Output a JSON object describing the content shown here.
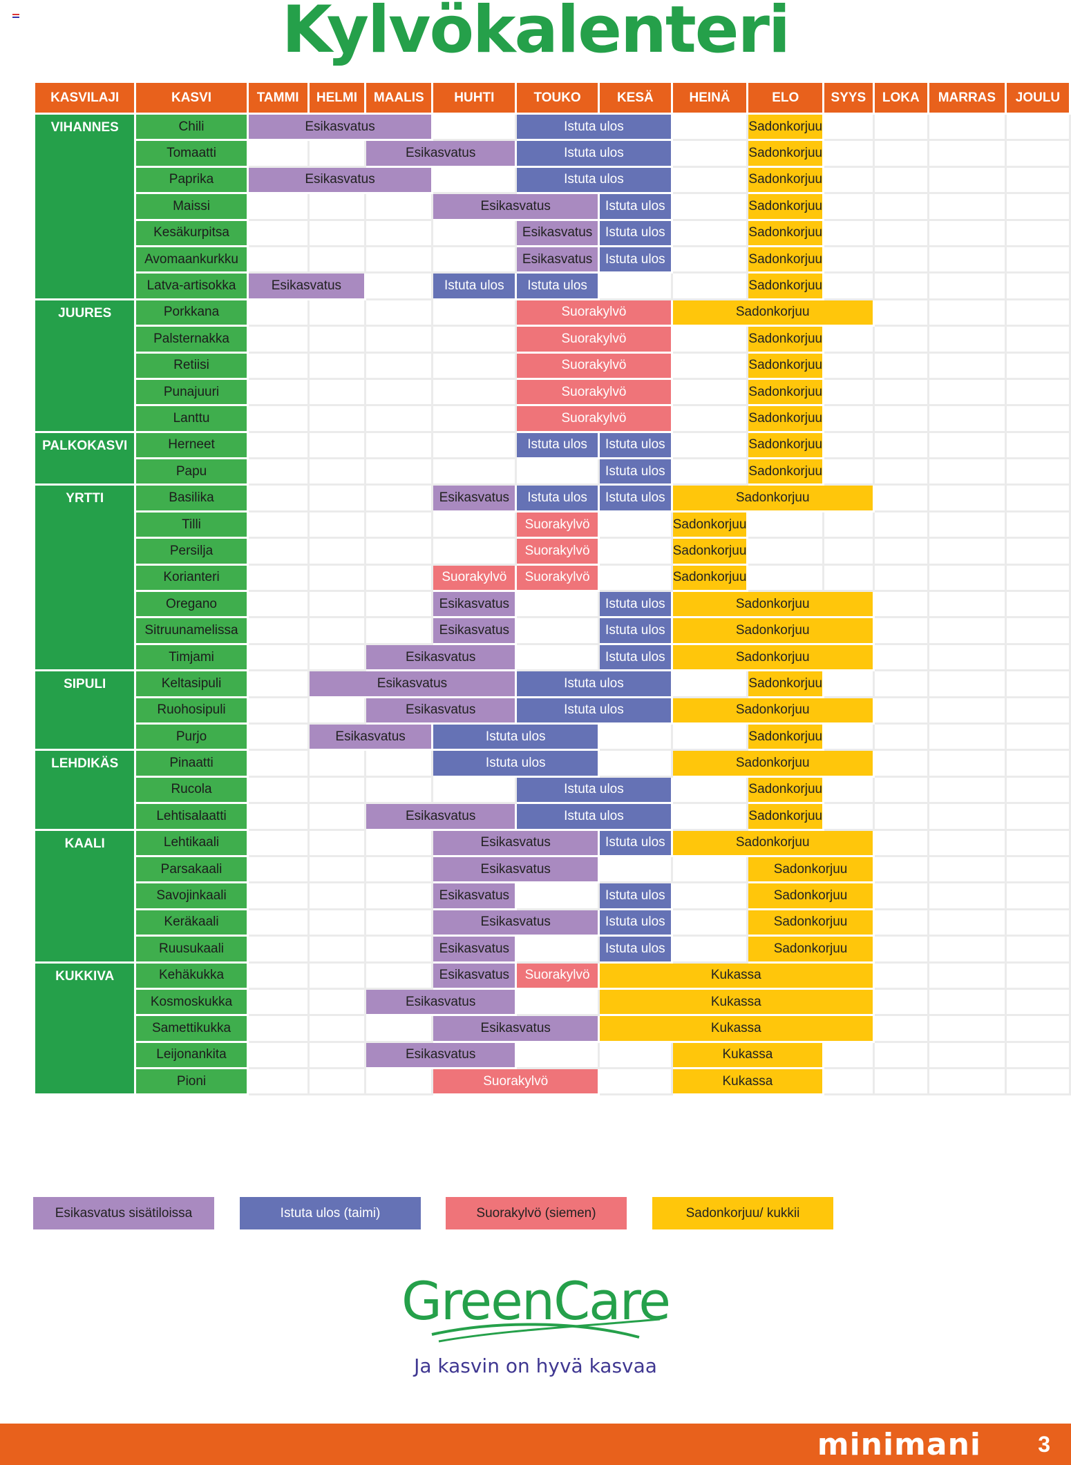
{
  "title": "Kylvökalenteri",
  "headers": [
    "KASVILAJI",
    "KASVI",
    "TAMMI",
    "HELMI",
    "MAALIS",
    "HUHTI",
    "TOUKO",
    "KESÄ",
    "HEINÄ",
    "ELO",
    "SYYS",
    "LOKA",
    "MARRAS",
    "JOULU"
  ],
  "labels": {
    "esi": "Esikasvatus",
    "ist": "Istuta ulos",
    "suo": "Suorakylvö",
    "sad": "Sadonkorjuu",
    "kuk": "Kukassa"
  },
  "colors": {
    "esi": "#a98ac0",
    "ist": "#6572b5",
    "suo": "#ef7479",
    "sad": "#ffc60b",
    "header": "#e8611c",
    "category": "#25a04a",
    "plant": "#3fae4d"
  },
  "categories": [
    {
      "name": "VIHANNES",
      "plants": [
        {
          "name": "Chili",
          "bars": [
            [
              "esi",
              0,
              3
            ],
            [
              "ist",
              4,
              6
            ],
            [
              "sad",
              7,
              8
            ]
          ]
        },
        {
          "name": "Tomaatti",
          "bars": [
            [
              "esi",
              2,
              4
            ],
            [
              "ist",
              4,
              6
            ],
            [
              "sad",
              7,
              8
            ]
          ]
        },
        {
          "name": "Paprika",
          "bars": [
            [
              "esi",
              0,
              3
            ],
            [
              "ist",
              4,
              6
            ],
            [
              "sad",
              7,
              8
            ]
          ]
        },
        {
          "name": "Maissi",
          "bars": [
            [
              "esi",
              3,
              5
            ],
            [
              "ist",
              5,
              6
            ],
            [
              "sad",
              7,
              8
            ]
          ]
        },
        {
          "name": "Kesäkurpitsa",
          "bars": [
            [
              "esi",
              4,
              5
            ],
            [
              "ist",
              5,
              6
            ],
            [
              "sad",
              7,
              8
            ]
          ]
        },
        {
          "name": "Avomaankurkku",
          "bars": [
            [
              "esi",
              4,
              5
            ],
            [
              "ist",
              5,
              6
            ],
            [
              "sad",
              7,
              8
            ]
          ]
        },
        {
          "name": "Latva-artisokka",
          "bars": [
            [
              "esi",
              0,
              2
            ],
            [
              "ist",
              3,
              4
            ],
            [
              "ist",
              4,
              5
            ],
            [
              "sad",
              7,
              8
            ]
          ]
        }
      ]
    },
    {
      "name": "JUURES",
      "plants": [
        {
          "name": "Porkkana",
          "bars": [
            [
              "suo",
              4,
              6
            ],
            [
              "sad",
              6,
              9
            ]
          ]
        },
        {
          "name": "Palsternakka",
          "bars": [
            [
              "suo",
              4,
              6
            ],
            [
              "sad",
              7,
              8
            ]
          ]
        },
        {
          "name": "Retiisi",
          "bars": [
            [
              "suo",
              4,
              6
            ],
            [
              "sad",
              7,
              8
            ]
          ]
        },
        {
          "name": "Punajuuri",
          "bars": [
            [
              "suo",
              4,
              6
            ],
            [
              "sad",
              7,
              8
            ]
          ]
        },
        {
          "name": "Lanttu",
          "bars": [
            [
              "suo",
              4,
              6
            ],
            [
              "sad",
              7,
              8
            ]
          ]
        }
      ]
    },
    {
      "name": "PALKOKASVI",
      "plants": [
        {
          "name": "Herneet",
          "bars": [
            [
              "ist",
              4,
              5
            ],
            [
              "ist",
              5,
              6
            ],
            [
              "sad",
              7,
              8
            ]
          ]
        },
        {
          "name": "Papu",
          "bars": [
            [
              "ist",
              5,
              6
            ],
            [
              "sad",
              7,
              8
            ]
          ]
        }
      ]
    },
    {
      "name": "YRTTI",
      "plants": [
        {
          "name": "Basilika",
          "bars": [
            [
              "esi",
              3,
              4
            ],
            [
              "ist",
              4,
              5
            ],
            [
              "ist",
              5,
              6
            ],
            [
              "sad",
              6,
              9
            ]
          ]
        },
        {
          "name": "Tilli",
          "bars": [
            [
              "suo",
              4,
              5
            ],
            [
              "sad",
              6,
              7
            ]
          ]
        },
        {
          "name": "Persilja",
          "bars": [
            [
              "suo",
              4,
              5
            ],
            [
              "sad",
              6,
              7
            ]
          ]
        },
        {
          "name": "Korianteri",
          "bars": [
            [
              "suo",
              3,
              4
            ],
            [
              "suo",
              4,
              5
            ],
            [
              "sad",
              6,
              7
            ]
          ]
        },
        {
          "name": "Oregano",
          "bars": [
            [
              "esi",
              3,
              4
            ],
            [
              "ist",
              5,
              6
            ],
            [
              "sad",
              6,
              9
            ]
          ]
        },
        {
          "name": "Sitruunamelissa",
          "bars": [
            [
              "esi",
              3,
              4
            ],
            [
              "ist",
              5,
              6
            ],
            [
              "sad",
              6,
              9
            ]
          ]
        },
        {
          "name": "Timjami",
          "bars": [
            [
              "esi",
              2,
              4
            ],
            [
              "ist",
              5,
              6
            ],
            [
              "sad",
              6,
              9
            ]
          ]
        }
      ]
    },
    {
      "name": "SIPULI",
      "plants": [
        {
          "name": "Keltasipuli",
          "bars": [
            [
              "esi",
              1,
              4
            ],
            [
              "ist",
              4,
              6
            ],
            [
              "sad",
              7,
              8
            ]
          ]
        },
        {
          "name": "Ruohosipuli",
          "bars": [
            [
              "esi",
              2,
              4
            ],
            [
              "ist",
              4,
              6
            ],
            [
              "sad",
              6,
              9
            ]
          ]
        },
        {
          "name": "Purjo",
          "bars": [
            [
              "esi",
              1,
              3
            ],
            [
              "ist",
              3,
              5
            ],
            [
              "sad",
              7,
              8
            ]
          ]
        }
      ]
    },
    {
      "name": "LEHDIKÄS",
      "plants": [
        {
          "name": "Pinaatti",
          "bars": [
            [
              "ist",
              3,
              5
            ],
            [
              "sad",
              6,
              9
            ]
          ]
        },
        {
          "name": "Rucola",
          "bars": [
            [
              "ist",
              4,
              6
            ],
            [
              "sad",
              7,
              8
            ]
          ]
        },
        {
          "name": "Lehtisalaatti",
          "bars": [
            [
              "esi",
              2,
              4
            ],
            [
              "ist",
              4,
              6
            ],
            [
              "sad",
              7,
              8
            ]
          ]
        }
      ]
    },
    {
      "name": "KAALI",
      "plants": [
        {
          "name": "Lehtikaali",
          "bars": [
            [
              "esi",
              3,
              5
            ],
            [
              "ist",
              5,
              6
            ],
            [
              "sad",
              6,
              9
            ]
          ]
        },
        {
          "name": "Parsakaali",
          "bars": [
            [
              "esi",
              3,
              5
            ],
            [
              "sad",
              7,
              9
            ]
          ]
        },
        {
          "name": "Savojinkaali",
          "bars": [
            [
              "esi",
              3,
              4
            ],
            [
              "ist",
              5,
              6
            ],
            [
              "sad",
              7,
              9
            ]
          ]
        },
        {
          "name": "Keräkaali",
          "bars": [
            [
              "esi",
              3,
              5
            ],
            [
              "ist",
              5,
              6
            ],
            [
              "sad",
              7,
              9
            ]
          ]
        },
        {
          "name": "Ruusukaali",
          "bars": [
            [
              "esi",
              3,
              4
            ],
            [
              "ist",
              5,
              6
            ],
            [
              "sad",
              7,
              9
            ]
          ]
        }
      ]
    },
    {
      "name": "KUKKIVA",
      "plants": [
        {
          "name": "Kehäkukka",
          "bars": [
            [
              "esi",
              3,
              4
            ],
            [
              "suo",
              4,
              5
            ],
            [
              "kuk",
              5,
              9
            ]
          ]
        },
        {
          "name": "Kosmoskukka",
          "bars": [
            [
              "esi",
              2,
              4
            ],
            [
              "kuk",
              5,
              9
            ]
          ]
        },
        {
          "name": "Samettikukka",
          "bars": [
            [
              "esi",
              3,
              5
            ],
            [
              "kuk",
              5,
              9
            ]
          ]
        },
        {
          "name": "Leijonankita",
          "bars": [
            [
              "esi",
              2,
              4
            ],
            [
              "kuk",
              6,
              8
            ]
          ]
        },
        {
          "name": "Pioni",
          "bars": [
            [
              "suo",
              3,
              5
            ],
            [
              "kuk",
              6,
              8
            ]
          ]
        }
      ]
    }
  ],
  "legend": [
    {
      "key": "esi",
      "label": "Esikasvatus sisätiloissa"
    },
    {
      "key": "ist",
      "label": "Istuta ulos (taimi)"
    },
    {
      "key": "suo",
      "label": "Suorakylvö (siemen)"
    },
    {
      "key": "sad",
      "label": "Sadonkorjuu/ kukkii"
    }
  ],
  "logo": {
    "name": "GreenCare",
    "tagline": "Ja kasvin on hyvä kasvaa"
  },
  "footer": {
    "brand": "minimani",
    "page": "3"
  }
}
